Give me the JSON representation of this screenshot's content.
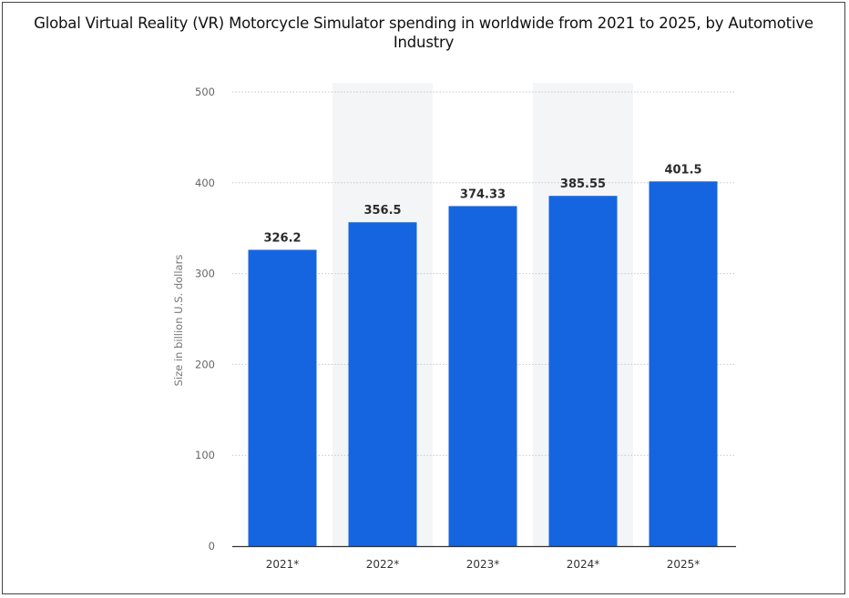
{
  "chart_data": {
    "type": "bar",
    "title": "Global Virtual Reality (VR) Motorcycle Simulator spending in worldwide from 2021 to 2025, by Automotive Industry",
    "categories": [
      "2021*",
      "2022*",
      "2023*",
      "2024*",
      "2025*"
    ],
    "values": [
      326.2,
      356.5,
      374.33,
      385.55,
      401.5
    ],
    "value_labels": [
      "326.2",
      "356.5",
      "374.33",
      "385.55",
      "401.5"
    ],
    "ylabel": "Size in billion U.S. dollars",
    "ylim": [
      0,
      500
    ],
    "yticks": [
      "0",
      "100",
      "200",
      "300",
      "400",
      "500"
    ],
    "grid": true,
    "bar_color": "#1565e0",
    "grid_color": "#c8c8c8",
    "band_color": "#f4f5f7"
  }
}
